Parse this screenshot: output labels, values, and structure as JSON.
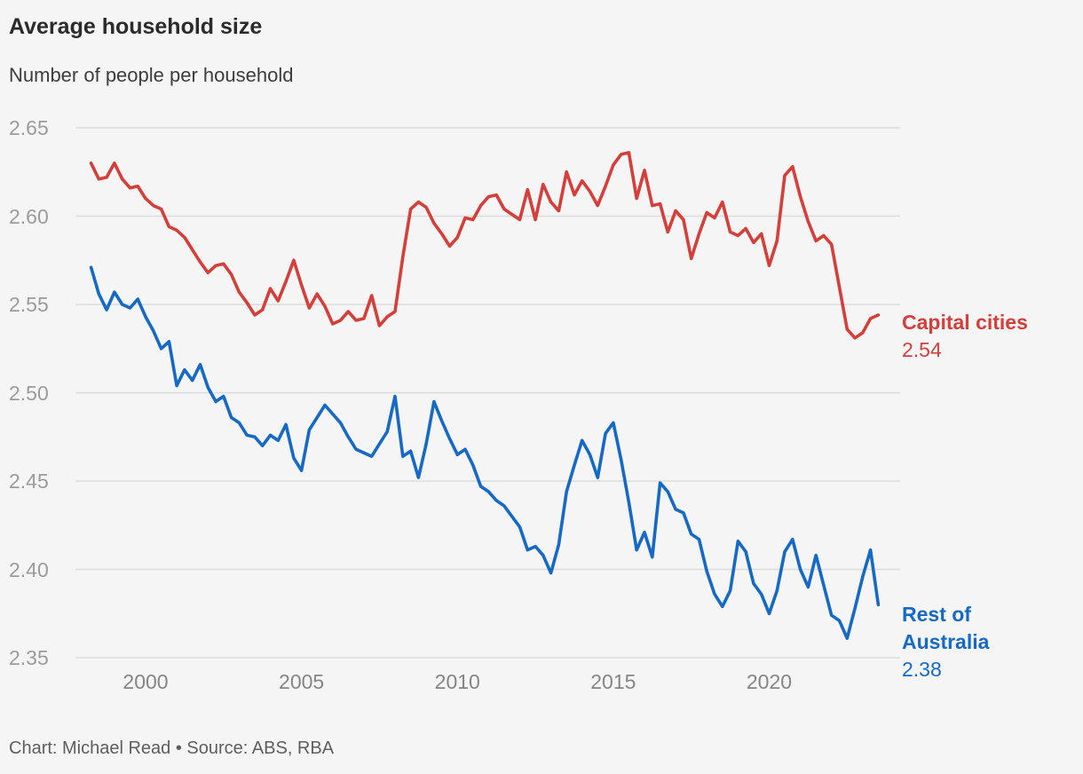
{
  "header": {
    "title": "Average household size",
    "subtitle": "Number of people per household"
  },
  "footer": {
    "caption": "Chart: Michael Read • Source: ABS, RBA"
  },
  "annotations": {
    "capital_cities": {
      "label": "Capital cities",
      "value": "2.54"
    },
    "rest_of_australia": {
      "line1": "Rest of",
      "line2": "Australia",
      "value": "2.38"
    }
  },
  "colors": {
    "background": "#f5f5f5",
    "grid": "#dcdcdc",
    "capital_cities": "#d63e3a",
    "rest_of_australia": "#1569c7",
    "axis_text": "#9b9b9b",
    "title_text": "#2b2b2b",
    "caption_text": "#5e5e5e"
  },
  "chart_data": {
    "type": "line",
    "title": "Average household size",
    "subtitle": "Number of people per household",
    "caption": "Chart: Michael Read • Source: ABS, RBA",
    "xlabel": "",
    "ylabel": "Number of people per household",
    "xlim": [
      1997.75,
      2024.2
    ],
    "ylim": [
      2.35,
      2.65
    ],
    "grid": "horizontal",
    "legend_position": "right-end-labels",
    "x_axis": {
      "ticks": [
        2000,
        2005,
        2010,
        2015,
        2020
      ],
      "labels": [
        "2000",
        "2005",
        "2010",
        "2015",
        "2020"
      ]
    },
    "y_axis": {
      "ticks": [
        2.65,
        2.6,
        2.55,
        2.5,
        2.45,
        2.4,
        2.35
      ],
      "labels": [
        "2.65",
        "2.60",
        "2.55",
        "2.50",
        "2.45",
        "2.40",
        "2.35"
      ]
    },
    "x_start": 1998.25,
    "x_step": 0.25,
    "x_unit": "year (quarterly samples)",
    "series": [
      {
        "name": "Capital cities",
        "color": "#d63e3a",
        "end_value": 2.54,
        "values": [
          2.63,
          2.621,
          2.622,
          2.63,
          2.621,
          2.616,
          2.617,
          2.61,
          2.606,
          2.604,
          2.594,
          2.592,
          2.588,
          2.581,
          2.574,
          2.568,
          2.572,
          2.573,
          2.567,
          2.557,
          2.551,
          2.544,
          2.547,
          2.559,
          2.552,
          2.563,
          2.575,
          2.561,
          2.548,
          2.556,
          2.549,
          2.539,
          2.541,
          2.546,
          2.541,
          2.542,
          2.555,
          2.538,
          2.543,
          2.546,
          2.577,
          2.604,
          2.608,
          2.605,
          2.596,
          2.59,
          2.583,
          2.588,
          2.599,
          2.598,
          2.606,
          2.611,
          2.612,
          2.604,
          2.601,
          2.598,
          2.615,
          2.598,
          2.618,
          2.608,
          2.603,
          2.625,
          2.612,
          2.62,
          2.614,
          2.606,
          2.617,
          2.629,
          2.635,
          2.636,
          2.61,
          2.626,
          2.606,
          2.607,
          2.591,
          2.603,
          2.598,
          2.576,
          2.59,
          2.602,
          2.599,
          2.608,
          2.591,
          2.589,
          2.593,
          2.585,
          2.59,
          2.572,
          2.586,
          2.623,
          2.628,
          2.611,
          2.597,
          2.586,
          2.589,
          2.584,
          2.56,
          2.536,
          2.531,
          2.534,
          2.542,
          2.544
        ]
      },
      {
        "name": "Rest of Australia",
        "color": "#1569c7",
        "end_value": 2.38,
        "values": [
          2.571,
          2.556,
          2.547,
          2.557,
          2.55,
          2.548,
          2.553,
          2.543,
          2.535,
          2.525,
          2.529,
          2.504,
          2.513,
          2.507,
          2.516,
          2.503,
          2.495,
          2.498,
          2.486,
          2.483,
          2.476,
          2.475,
          2.47,
          2.476,
          2.473,
          2.482,
          2.463,
          2.456,
          2.479,
          2.486,
          2.493,
          2.488,
          2.483,
          2.475,
          2.468,
          2.466,
          2.464,
          2.471,
          2.478,
          2.498,
          2.464,
          2.467,
          2.452,
          2.471,
          2.495,
          2.484,
          2.474,
          2.465,
          2.468,
          2.459,
          2.447,
          2.444,
          2.439,
          2.436,
          2.43,
          2.424,
          2.411,
          2.413,
          2.408,
          2.398,
          2.414,
          2.444,
          2.459,
          2.473,
          2.465,
          2.452,
          2.477,
          2.483,
          2.462,
          2.438,
          2.411,
          2.421,
          2.407,
          2.449,
          2.444,
          2.434,
          2.432,
          2.42,
          2.417,
          2.399,
          2.386,
          2.379,
          2.388,
          2.416,
          2.41,
          2.392,
          2.386,
          2.375,
          2.388,
          2.41,
          2.417,
          2.4,
          2.39,
          2.408,
          2.391,
          2.374,
          2.371,
          2.361,
          2.378,
          2.396,
          2.411,
          2.38
        ]
      }
    ]
  }
}
